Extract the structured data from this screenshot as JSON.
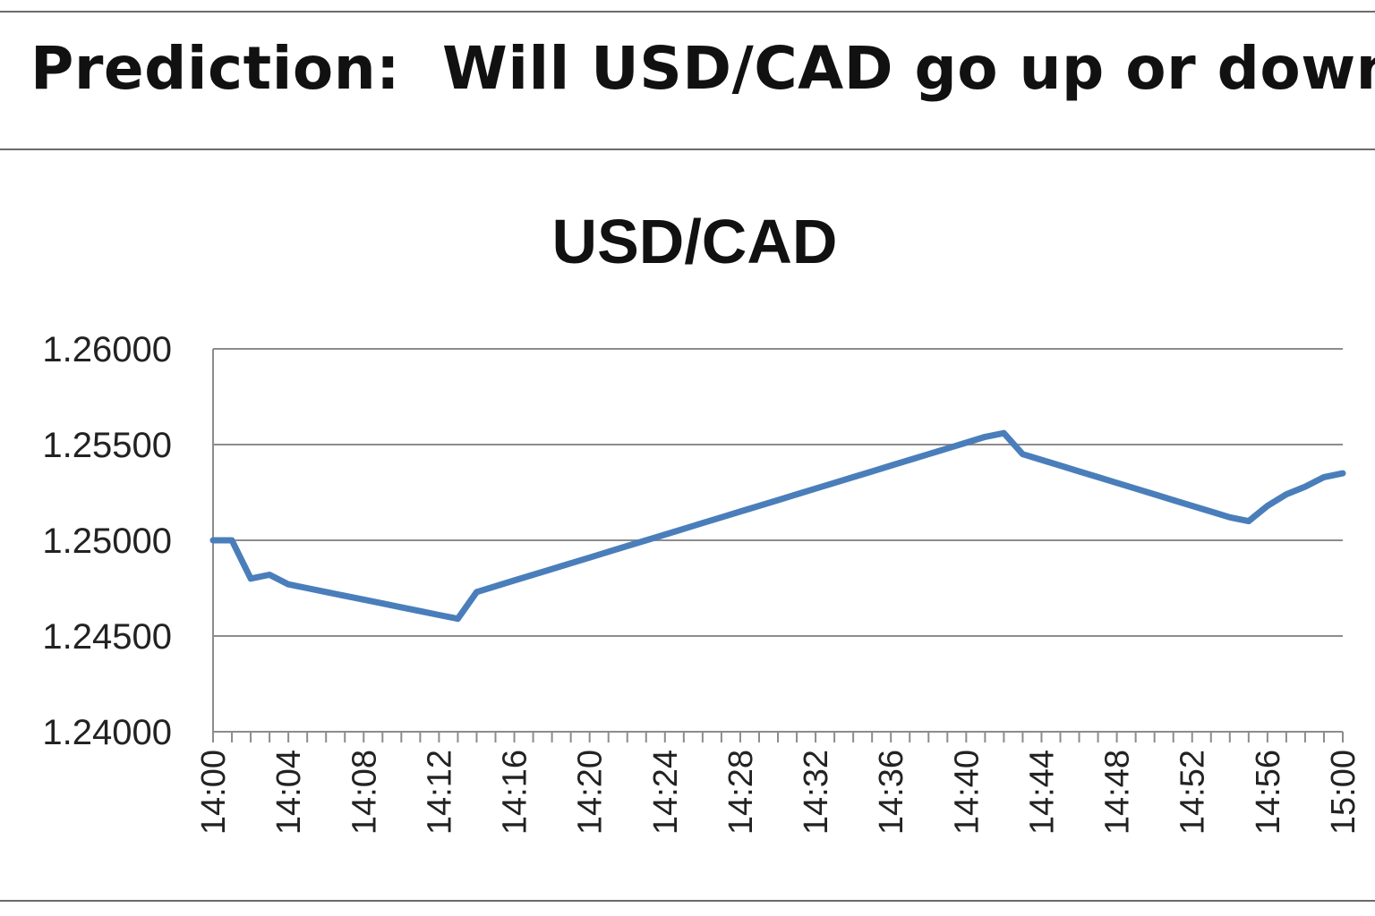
{
  "headline": "Prediction:  Will USD/CAD go up or down?",
  "chart_data": {
    "type": "line",
    "title": "USD/CAD",
    "xlabel": "",
    "ylabel": "",
    "ylim": [
      1.24,
      1.26
    ],
    "yticks": [
      "1.26000",
      "1.25500",
      "1.25000",
      "1.24500",
      "1.24000"
    ],
    "ytick_values": [
      1.26,
      1.255,
      1.25,
      1.245,
      1.24
    ],
    "xtick_labels": [
      "14:00",
      "14:04",
      "14:08",
      "14:12",
      "14:16",
      "14:20",
      "14:24",
      "14:28",
      "14:32",
      "14:36",
      "14:40",
      "14:44",
      "14:48",
      "14:52",
      "14:56",
      "15:00"
    ],
    "grid": true,
    "line_color": "#4a7ebb",
    "grid_color": "#8c8c8c",
    "x_minutes_total": 60,
    "series": [
      {
        "x": [
          "14:00",
          "14:01",
          "14:02",
          "14:03",
          "14:04",
          "14:05",
          "14:06",
          "14:07",
          "14:08",
          "14:09",
          "14:10",
          "14:11",
          "14:12",
          "14:13",
          "14:14",
          "14:15",
          "14:16",
          "14:17",
          "14:18",
          "14:19",
          "14:20",
          "14:21",
          "14:22",
          "14:23",
          "14:24",
          "14:25",
          "14:26",
          "14:27",
          "14:28",
          "14:29",
          "14:30",
          "14:31",
          "14:32",
          "14:33",
          "14:34",
          "14:35",
          "14:36",
          "14:37",
          "14:38",
          "14:39",
          "14:40",
          "14:41",
          "14:42",
          "14:43",
          "14:44",
          "14:45",
          "14:46",
          "14:47",
          "14:48",
          "14:49",
          "14:50",
          "14:51",
          "14:52",
          "14:53",
          "14:54",
          "14:55",
          "14:56",
          "14:57",
          "14:58",
          "14:59",
          "15:00"
        ],
        "values": [
          1.25,
          1.25,
          1.248,
          1.2482,
          1.2477,
          1.2475,
          1.2473,
          1.2471,
          1.2469,
          1.2467,
          1.2465,
          1.2463,
          1.2461,
          1.2459,
          1.2473,
          1.2476,
          1.2479,
          1.2482,
          1.2485,
          1.2488,
          1.2491,
          1.2494,
          1.2497,
          1.25,
          1.2503,
          1.2506,
          1.2509,
          1.2512,
          1.2515,
          1.2518,
          1.2521,
          1.2524,
          1.2527,
          1.253,
          1.2533,
          1.2536,
          1.2539,
          1.2542,
          1.2545,
          1.2548,
          1.2551,
          1.2554,
          1.2556,
          1.2545,
          1.2542,
          1.2539,
          1.2536,
          1.2533,
          1.253,
          1.2527,
          1.2524,
          1.2521,
          1.2518,
          1.2515,
          1.2512,
          1.251,
          1.2518,
          1.2524,
          1.2528,
          1.2533,
          1.2535
        ]
      }
    ]
  }
}
